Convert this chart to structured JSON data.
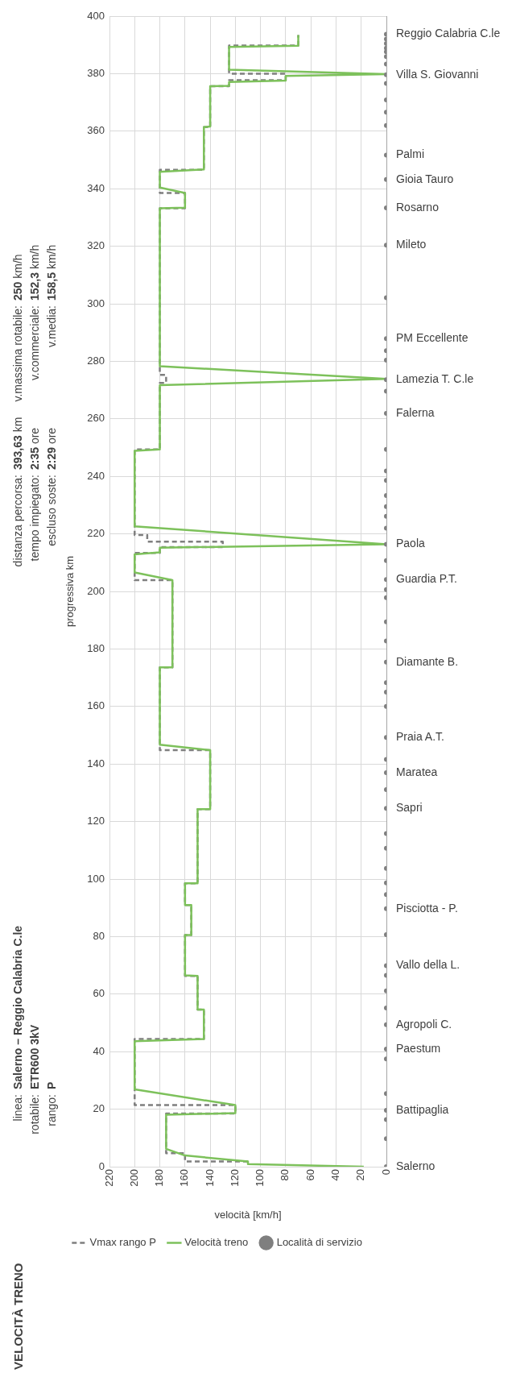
{
  "chart_data": {
    "type": "line",
    "title": "VELOCITÀ TRENO",
    "xlabel": "velocità [km/h]",
    "ylabel": "progressiva km",
    "xlim": [
      220,
      0
    ],
    "xticks": [
      220,
      200,
      180,
      160,
      140,
      120,
      100,
      80,
      60,
      40,
      20,
      0
    ],
    "ylim": [
      0,
      400
    ],
    "yticks": [
      0,
      20,
      40,
      60,
      80,
      100,
      120,
      140,
      160,
      180,
      200,
      220,
      240,
      260,
      280,
      300,
      320,
      340,
      360,
      380,
      400
    ],
    "grid": true,
    "legend": "bottom left",
    "series": [
      {
        "name": "Vmax rango P",
        "type": "line",
        "color": "#7f7f7f",
        "line_style": "dashed",
        "values": [
          1.8,
          1.8,
          4.7,
          4.7,
          18.5,
          18.5,
          21.4,
          21.4,
          44.4,
          44.4,
          54.6,
          54.6,
          66.3,
          66.3,
          80.5,
          80.5,
          91,
          91,
          98.5,
          98.5,
          124.3,
          124.3,
          144.8,
          144.8,
          173.6,
          173.6,
          203.9,
          203.9,
          213.4,
          213.4,
          215.4,
          215.4,
          217.3,
          217.3,
          219.6,
          219.6,
          249.4,
          249.4,
          272.5,
          272.5,
          275.3,
          275.3,
          333.2,
          333.2,
          338.5,
          338.5,
          346.6,
          346.6,
          361.4,
          361.4,
          375.6,
          375.6,
          377.7,
          377.7,
          380,
          380,
          389.8,
          389.8,
          393.4
        ],
        "x": [
          110,
          160,
          160,
          175,
          175,
          120,
          120,
          200,
          200,
          145,
          145,
          150,
          150,
          160,
          160,
          155,
          155,
          160,
          160,
          150,
          150,
          140,
          140,
          180,
          180,
          170,
          170,
          200,
          200,
          180,
          180,
          130,
          130,
          190,
          190,
          200,
          200,
          180,
          180,
          175,
          175,
          180,
          180,
          160,
          160,
          180,
          180,
          145,
          145,
          140,
          140,
          125,
          125,
          80,
          80,
          125,
          125,
          70,
          70
        ]
      },
      {
        "name": "Velocità treno",
        "type": "line",
        "color": "#7dc15b",
        "line_style": "solid",
        "values": [
          0,
          0.9,
          1.8,
          3.9,
          6.2,
          18.1,
          18.6,
          21.4,
          26.9,
          43.6,
          44.4,
          54.6,
          54.6,
          66.3,
          66.5,
          80.5,
          80.5,
          91,
          91,
          98.5,
          98.5,
          124.3,
          124.3,
          144.8,
          146.7,
          173.6,
          173.6,
          203.9,
          206.6,
          212.9,
          213.6,
          215.2,
          216.4,
          222.6,
          248.9,
          249.4,
          271.7,
          273.9,
          278.3,
          333.2,
          333.4,
          338.5,
          340.4,
          345.9,
          346.7,
          361.4,
          361.6,
          375.6,
          375.8,
          377.1,
          377.6,
          379.2,
          379.8,
          381.4,
          389.3,
          389.7,
          393.4
        ],
        "x": [
          18,
          110,
          110,
          160,
          175,
          175,
          120,
          120,
          200,
          200,
          145,
          145,
          150,
          150,
          160,
          160,
          155,
          155,
          160,
          160,
          150,
          150,
          140,
          140,
          180,
          180,
          170,
          170,
          200,
          200,
          180,
          180,
          0,
          200,
          200,
          180,
          180,
          0,
          180,
          180,
          160,
          160,
          180,
          180,
          145,
          145,
          140,
          140,
          125,
          125,
          80,
          80,
          0,
          125,
          125,
          70,
          70
        ]
      },
      {
        "name": "Località di servizio",
        "type": "scatter",
        "color": "#7f7f7f",
        "marker": "circle",
        "values": [
          0,
          9.7,
          16.4,
          19.6,
          25.4,
          37.5,
          40.9,
          49.4,
          55.2,
          61.1,
          66.5,
          69.9,
          80.7,
          89.7,
          94.6,
          98.7,
          103.7,
          110.7,
          115.8,
          124.6,
          131.1,
          137,
          141.6,
          149.2,
          160,
          165,
          168.3,
          175.4,
          182.8,
          189.4,
          197.8,
          200.6,
          204.1,
          210.7,
          216.4,
          222,
          226.1,
          229.5,
          233.3,
          238.6,
          241.9,
          249.4,
          261.9,
          269.6,
          273.6,
          280.4,
          283.7,
          287.9,
          302.1,
          320.4,
          333.3,
          343.2,
          351.7,
          362,
          366.6,
          370.9,
          376.6,
          379.6,
          383.3,
          385.9,
          387.6,
          388.9,
          390.5,
          392,
          393.7
        ],
        "x": [
          0,
          0,
          0,
          0,
          0,
          0,
          0,
          0,
          0,
          0,
          0,
          0,
          0,
          0,
          0,
          0,
          0,
          0,
          0,
          0,
          0,
          0,
          0,
          0,
          0,
          0,
          0,
          0,
          0,
          0,
          0,
          0,
          0,
          0,
          0,
          0,
          0,
          0,
          0,
          0,
          0,
          0,
          0,
          0,
          0,
          0,
          0,
          0,
          0,
          0,
          0,
          0,
          0,
          0,
          0,
          0,
          0,
          0,
          0,
          0,
          0,
          0,
          0,
          0,
          0
        ],
        "value_labels": [
          "Salerno",
          null,
          null,
          "Battipaglia",
          null,
          null,
          "Paestum",
          "Agropoli C.",
          null,
          null,
          null,
          "Vallo della L.",
          null,
          "Pisciotta - P.",
          null,
          null,
          null,
          null,
          null,
          "Sapri",
          null,
          "Maratea",
          null,
          "Praia A.T.",
          null,
          null,
          null,
          "Diamante B.",
          null,
          null,
          null,
          null,
          "Guardia P.T.",
          null,
          "Paola",
          null,
          null,
          null,
          null,
          null,
          null,
          null,
          "Falerna",
          null,
          "Lamezia T. C.le",
          null,
          null,
          "PM Eccellente",
          null,
          "Mileto",
          "Rosarno",
          "Gioia Tauro",
          "Palmi",
          null,
          null,
          null,
          null,
          "Villa S. Giovanni",
          null,
          null,
          null,
          null,
          null,
          null,
          "Reggio Calabria C.le"
        ]
      }
    ],
    "annotations": [
      "linea: Salerno – Reggio Calabria C.le",
      "rotabile: ETR600 3kV",
      "rango: P",
      "distanza percorsa: 393,63 km",
      "tempo impiegato: 2:35 ore",
      "escluso soste: 2:29 ore",
      "v.massima rotabile: 250 km/h",
      "v.commerciale: 152,3 km/h",
      "v.media: 158,5 km/h"
    ]
  }
}
